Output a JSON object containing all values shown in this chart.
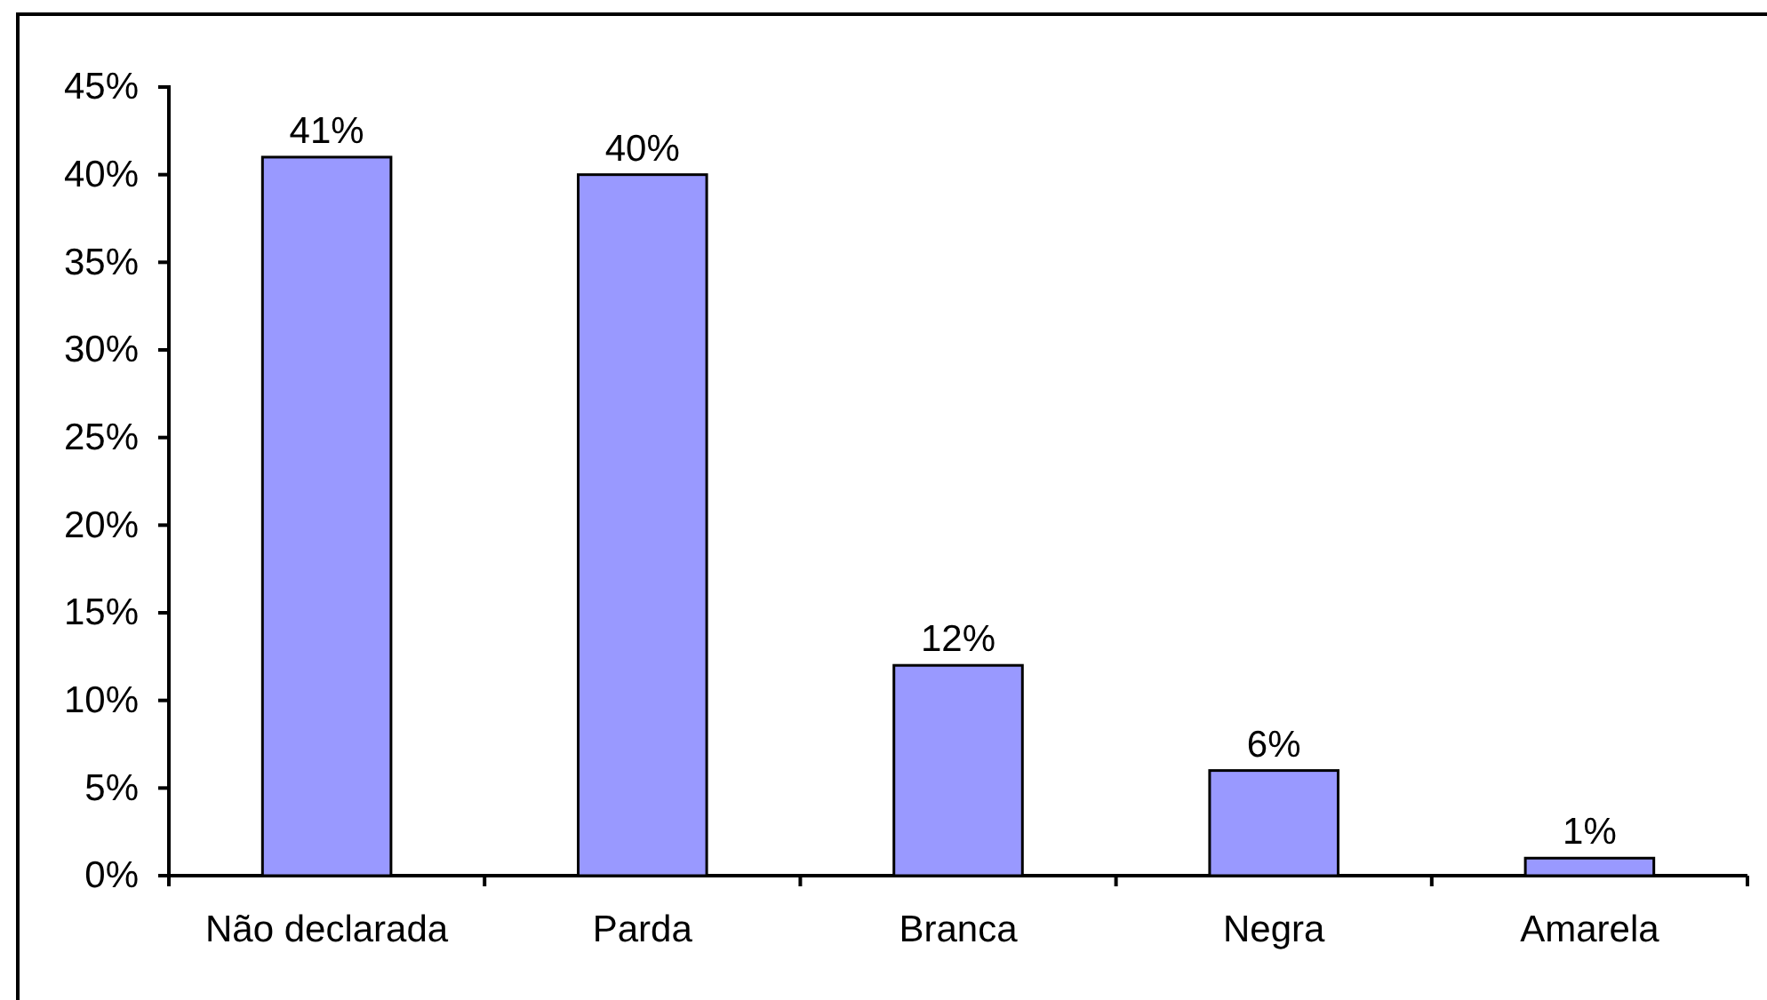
{
  "chart_data": {
    "type": "bar",
    "categories": [
      "Não declarada",
      "Parda",
      "Branca",
      "Negra",
      "Amarela"
    ],
    "values": [
      41,
      40,
      12,
      6,
      1
    ],
    "value_labels": [
      "41%",
      "40%",
      "12%",
      "6%",
      "1%"
    ],
    "color": "#9999ff",
    "ylim": [
      0,
      45
    ],
    "yticks": [
      {
        "value": 0,
        "label": "0%"
      },
      {
        "value": 5,
        "label": "5%"
      },
      {
        "value": 10,
        "label": "10%"
      },
      {
        "value": 15,
        "label": "15%"
      },
      {
        "value": 20,
        "label": "20%"
      },
      {
        "value": 25,
        "label": "25%"
      },
      {
        "value": 30,
        "label": "30%"
      },
      {
        "value": 35,
        "label": "35%"
      },
      {
        "value": 40,
        "label": "40%"
      },
      {
        "value": 45,
        "label": "45%"
      }
    ],
    "grid": false
  }
}
